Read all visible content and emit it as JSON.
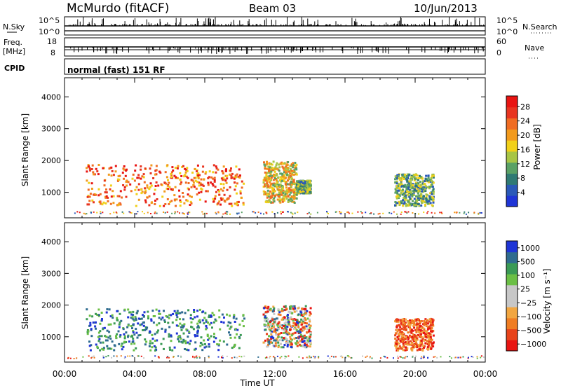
{
  "header": {
    "title": "McMurdo (fitACF)",
    "beam": "Beam 03",
    "date": "10/Jun/2013"
  },
  "status_panels": {
    "nsky_label": "N.Sky",
    "nsearch_label": "N.Search",
    "nsky_ticks": [
      "10^5",
      "10^0"
    ],
    "nsearch_ticks": [
      "10^5",
      "10^0"
    ],
    "freq_label_line1": "Freq.",
    "freq_label_line2": "[MHz]",
    "freq_ticks": [
      "18",
      "8"
    ],
    "nave_label": "Nave",
    "nave_ticks": [
      "60",
      "0"
    ],
    "cpid_label": "CPID",
    "cpid_text": "normal (fast) 151 RF"
  },
  "colors": {
    "power_scale": [
      "#1f35d6",
      "#2a59b8",
      "#2f7a74",
      "#5aa165",
      "#a8c545",
      "#f1d019",
      "#f29a1c",
      "#f06c22",
      "#e83520",
      "#e81412"
    ],
    "velocity_scale": [
      "#e81412",
      "#e8431a",
      "#f07d22",
      "#f2a640",
      "#c7c7c7",
      "#c7c7c7",
      "#6bbf45",
      "#3a9a55",
      "#2f6b8f",
      "#1f35d6"
    ]
  },
  "chart_data": [
    {
      "type": "heatmap",
      "panel": "power",
      "ylabel": "Slant Range [km]",
      "xlabel": "",
      "ylim": [
        200,
        4600
      ],
      "yticks": [
        "1000",
        "2000",
        "3000",
        "4000"
      ],
      "xlim_hours": [
        0,
        24
      ],
      "xticks": [],
      "colorbar_label": "Power [dB]",
      "colorbar_ticks": [
        "4",
        "8",
        "12",
        "16",
        "20",
        "24",
        "28"
      ],
      "colorbar_range": [
        0,
        31
      ],
      "regions": [
        {
          "t0": 1.2,
          "t1": 10.2,
          "r0": 600,
          "r1": 1900,
          "level": "high"
        },
        {
          "t0": 11.3,
          "t1": 13.2,
          "r0": 700,
          "r1": 2000,
          "level": "medium"
        },
        {
          "t0": 13.2,
          "t1": 14.0,
          "r0": 1000,
          "r1": 1400,
          "level": "low"
        },
        {
          "t0": 18.8,
          "t1": 21.0,
          "r0": 600,
          "r1": 1600,
          "level": "low"
        }
      ]
    },
    {
      "type": "heatmap",
      "panel": "velocity",
      "ylabel": "Slant Range [km]",
      "xlabel": "Time UT",
      "ylim": [
        200,
        4600
      ],
      "yticks": [
        "1000",
        "2000",
        "3000",
        "4000"
      ],
      "xlim_hours": [
        0,
        24
      ],
      "xticks": [
        "00:00",
        "04:00",
        "08:00",
        "12:00",
        "16:00",
        "20:00",
        "00:00"
      ],
      "colorbar_label": "Velocity [m s⁻¹]",
      "colorbar_ticks": [
        "1000",
        "500",
        "100",
        "25",
        "−25",
        "−100",
        "−500",
        "−1000"
      ],
      "regions": [
        {
          "t0": 1.2,
          "t1": 10.2,
          "r0": 600,
          "r1": 1900,
          "sign": "positive"
        },
        {
          "t0": 11.3,
          "t1": 14.0,
          "r0": 700,
          "r1": 2000,
          "sign": "mixed"
        },
        {
          "t0": 18.8,
          "t1": 21.0,
          "r0": 600,
          "r1": 1600,
          "sign": "negative"
        }
      ]
    }
  ]
}
